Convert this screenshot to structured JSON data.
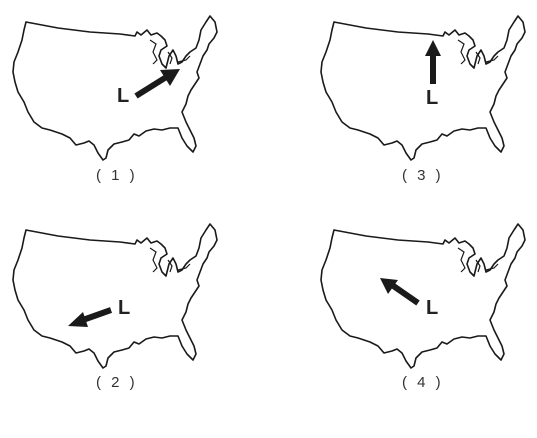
{
  "panels": [
    {
      "id": 1,
      "caption": "( 1 )",
      "low_label": "L",
      "arrow_direction": "northeast"
    },
    {
      "id": 2,
      "caption": "( 2 )",
      "low_label": "L",
      "arrow_direction": "southwest"
    },
    {
      "id": 3,
      "caption": "( 3 )",
      "low_label": "L",
      "arrow_direction": "north"
    },
    {
      "id": 4,
      "caption": "( 4 )",
      "low_label": "L",
      "arrow_direction": "northwest"
    }
  ],
  "colors": {
    "outline": "#1a1a1a",
    "arrow": "#1a1a1a",
    "background": "#ffffff"
  }
}
